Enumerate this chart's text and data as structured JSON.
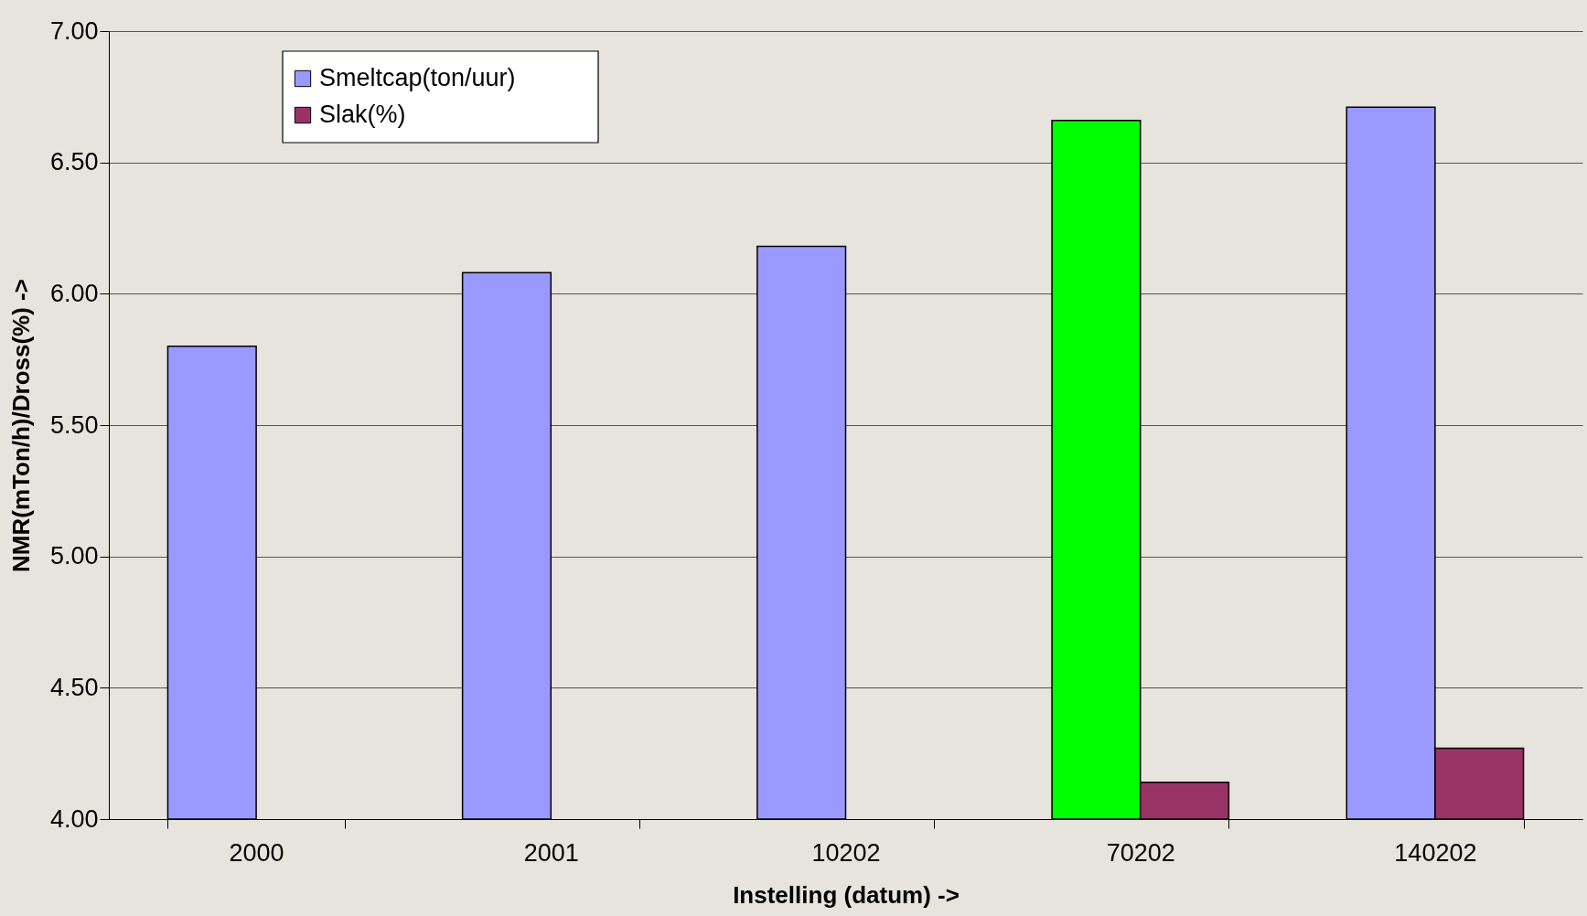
{
  "chart_data": {
    "type": "bar",
    "xlabel": "Instelling (datum) ->",
    "ylabel": "NMR(mTon/h)/Dross(%) ->",
    "categories": [
      "2000",
      "2001",
      "10202",
      "70202",
      "140202"
    ],
    "series": [
      {
        "name": "Smeltcap(ton/uur)",
        "color": "#9999ff",
        "colors": [
          "#9999ff",
          "#9999ff",
          "#9999ff",
          "#00ff00",
          "#9999ff"
        ],
        "values": [
          5.8,
          6.08,
          6.18,
          6.66,
          6.71
        ]
      },
      {
        "name": "Slak(%)",
        "color": "#993366",
        "values": [
          null,
          null,
          null,
          4.14,
          4.27
        ]
      }
    ],
    "ylim": [
      4.0,
      7.0
    ],
    "yticks": [
      {
        "value": 4.0,
        "label": "4.00"
      },
      {
        "value": 4.5,
        "label": "4.50"
      },
      {
        "value": 5.0,
        "label": "5.00"
      },
      {
        "value": 5.5,
        "label": "5.50"
      },
      {
        "value": 6.0,
        "label": "6.00"
      },
      {
        "value": 6.5,
        "label": "6.50"
      },
      {
        "value": 7.0,
        "label": "7.00"
      }
    ],
    "grid": "y",
    "legend": "top left"
  }
}
